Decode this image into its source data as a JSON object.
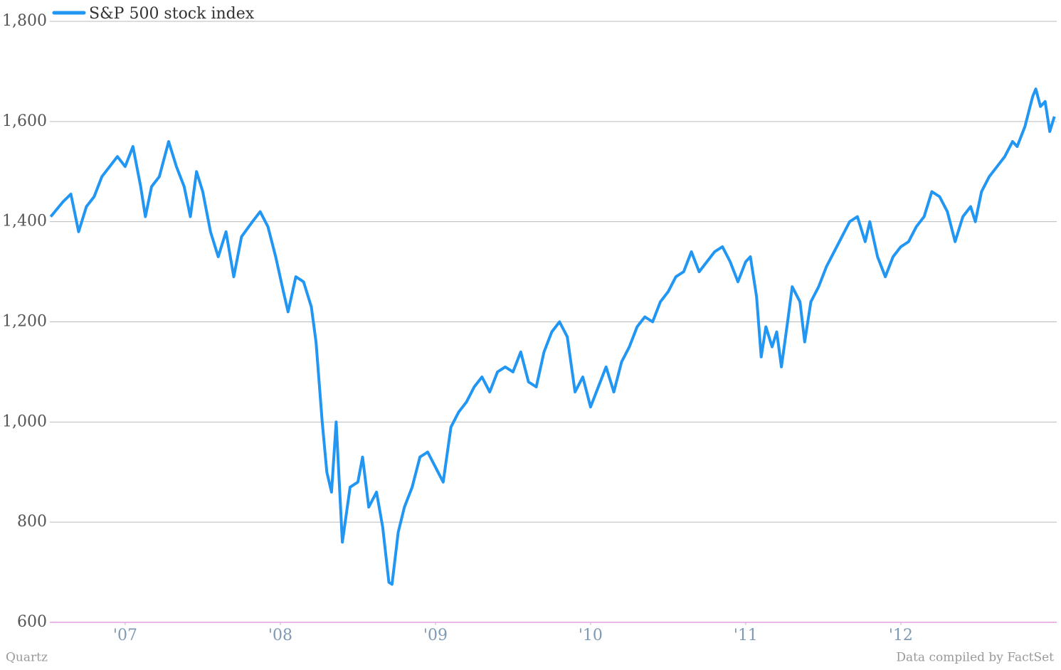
{
  "chart_data": {
    "type": "line",
    "credit": "Quartz",
    "source": "Data compiled by FactSet",
    "legend": "top-left",
    "grid": true,
    "x": [
      2006.52,
      2006.6,
      2006.65,
      2006.7,
      2006.75,
      2006.8,
      2006.85,
      2006.9,
      2006.95,
      2007.0,
      2007.05,
      2007.1,
      2007.13,
      2007.17,
      2007.22,
      2007.28,
      2007.33,
      2007.38,
      2007.42,
      2007.46,
      2007.5,
      2007.55,
      2007.6,
      2007.65,
      2007.7,
      2007.75,
      2007.82,
      2007.87,
      2007.92,
      2007.97,
      2008.02,
      2008.05,
      2008.1,
      2008.15,
      2008.2,
      2008.23,
      2008.27,
      2008.3,
      2008.33,
      2008.36,
      2008.4,
      2008.45,
      2008.5,
      2008.53,
      2008.57,
      2008.62,
      2008.66,
      2008.7,
      2008.72,
      2008.76,
      2008.8,
      2008.85,
      2008.9,
      2008.95,
      2009.0,
      2009.05,
      2009.1,
      2009.15,
      2009.2,
      2009.25,
      2009.3,
      2009.35,
      2009.4,
      2009.45,
      2009.5,
      2009.55,
      2009.6,
      2009.65,
      2009.7,
      2009.75,
      2009.8,
      2009.85,
      2009.9,
      2009.95,
      2010.0,
      2010.05,
      2010.1,
      2010.15,
      2010.2,
      2010.25,
      2010.3,
      2010.35,
      2010.4,
      2010.45,
      2010.5,
      2010.55,
      2010.6,
      2010.65,
      2010.7,
      2010.75,
      2010.8,
      2010.85,
      2010.9,
      2010.95,
      2011.0,
      2011.03,
      2011.07,
      2011.1,
      2011.13,
      2011.17,
      2011.2,
      2011.23,
      2011.27,
      2011.3,
      2011.35,
      2011.38,
      2011.42,
      2011.47,
      2011.52,
      2011.57,
      2011.62,
      2011.67,
      2011.72,
      2011.77,
      2011.8,
      2011.85,
      2011.9,
      2011.95,
      2012.0,
      2012.05,
      2012.1,
      2012.15,
      2012.2,
      2012.25,
      2012.3,
      2012.35,
      2012.4,
      2012.45,
      2012.48,
      2012.52,
      2012.57,
      2012.62,
      2012.67,
      2012.72,
      2012.75,
      2012.8,
      2012.85,
      2012.87,
      2012.9,
      2012.93,
      2012.96,
      2012.99
    ],
    "series": [
      {
        "name": "S&P 500 stock index",
        "color": "#2196f3",
        "values": [
          1410,
          1440,
          1455,
          1380,
          1430,
          1450,
          1490,
          1510,
          1530,
          1510,
          1550,
          1470,
          1410,
          1470,
          1490,
          1560,
          1510,
          1470,
          1410,
          1500,
          1460,
          1380,
          1330,
          1380,
          1290,
          1370,
          1400,
          1420,
          1390,
          1330,
          1260,
          1220,
          1290,
          1280,
          1230,
          1160,
          1000,
          900,
          860,
          1000,
          760,
          870,
          880,
          930,
          830,
          860,
          790,
          680,
          676,
          780,
          830,
          870,
          930,
          940,
          910,
          880,
          990,
          1020,
          1040,
          1070,
          1090,
          1060,
          1100,
          1110,
          1100,
          1140,
          1080,
          1070,
          1140,
          1180,
          1200,
          1170,
          1060,
          1090,
          1030,
          1070,
          1110,
          1060,
          1120,
          1150,
          1190,
          1210,
          1200,
          1240,
          1260,
          1290,
          1300,
          1340,
          1300,
          1320,
          1340,
          1350,
          1320,
          1280,
          1320,
          1330,
          1250,
          1130,
          1190,
          1150,
          1180,
          1110,
          1200,
          1270,
          1240,
          1160,
          1240,
          1270,
          1310,
          1340,
          1370,
          1400,
          1410,
          1360,
          1400,
          1330,
          1290,
          1330,
          1350,
          1360,
          1390,
          1410,
          1460,
          1450,
          1420,
          1360,
          1410,
          1430,
          1400,
          1460,
          1490,
          1510,
          1530,
          1560,
          1550,
          1590,
          1650,
          1665,
          1630,
          1640,
          1580,
          1610
        ]
      }
    ],
    "xlim": [
      2006.514,
      2013.005
    ],
    "xticks": [
      {
        "value": 2007,
        "label": "'07"
      },
      {
        "value": 2008,
        "label": "'08"
      },
      {
        "value": 2009,
        "label": "'09"
      },
      {
        "value": 2010,
        "label": "'10"
      },
      {
        "value": 2011,
        "label": "'11"
      },
      {
        "value": 2012,
        "label": "'12"
      }
    ],
    "ylim": [
      600,
      1800
    ],
    "yticks": [
      600,
      {
        "value": 800,
        "label": "800"
      },
      {
        "value": 1000,
        "label": "1,000"
      },
      {
        "value": 1200,
        "label": "1,200"
      },
      {
        "value": 1400,
        "label": "1,400"
      },
      {
        "value": 1600,
        "label": "1,600"
      },
      {
        "value": 1800,
        "label": "1,800"
      }
    ]
  }
}
